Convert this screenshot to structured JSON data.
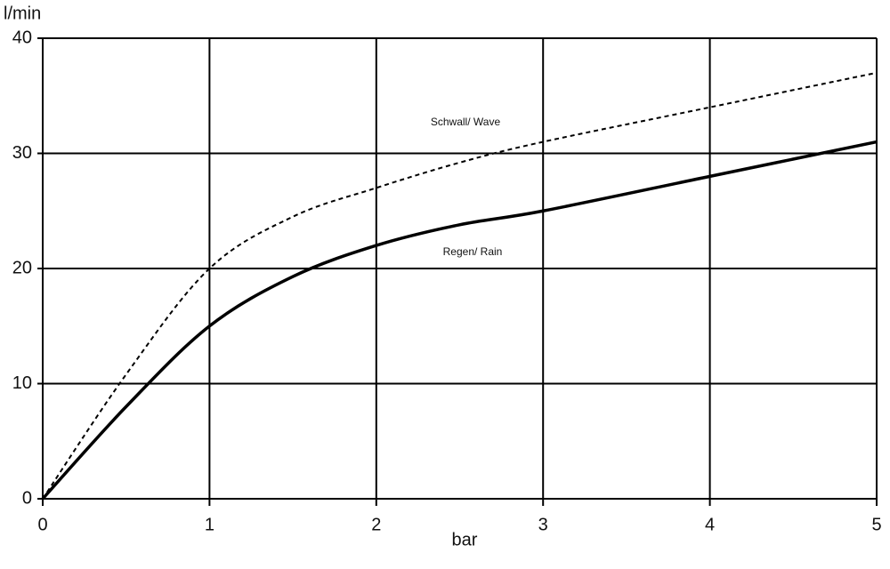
{
  "chart_data": {
    "type": "line",
    "x_label": "bar",
    "y_label": "l/min",
    "x": [
      0,
      0.5,
      1,
      1.5,
      2,
      2.5,
      3,
      4,
      5
    ],
    "series": [
      {
        "name": "Schwall/ Wave",
        "color": "#000000",
        "line_style": "dashed",
        "values": [
          0,
          10.8,
          20,
          24.5,
          27,
          29.2,
          31,
          34,
          37
        ]
      },
      {
        "name": "Regen/ Rain",
        "color": "#000000",
        "line_style": "solid",
        "values": [
          0,
          8,
          15,
          19.3,
          22,
          23.8,
          25,
          28,
          31
        ]
      }
    ],
    "xlim": [
      0,
      5
    ],
    "ylim": [
      0,
      40
    ],
    "xticks": [
      0,
      1,
      2,
      3,
      4,
      5
    ],
    "yticks": [
      0,
      10,
      20,
      30,
      40
    ],
    "grid": true
  }
}
